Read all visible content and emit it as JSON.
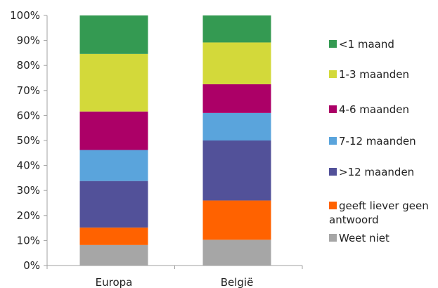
{
  "chart_data": {
    "type": "bar",
    "stacked": true,
    "title": "",
    "xlabel": "",
    "ylabel": "",
    "ylim": [
      0,
      100
    ],
    "y_ticks": [
      "0%",
      "10%",
      "20%",
      "30%",
      "40%",
      "50%",
      "60%",
      "70%",
      "80%",
      "90%",
      "100%"
    ],
    "categories": [
      "Europa",
      "België"
    ],
    "grid": false,
    "legend_position": "right",
    "series": [
      {
        "name": "Weet niet",
        "color": "#a6a6a6",
        "values": [
          8.2,
          10.3
        ]
      },
      {
        "name": "geeft liever geen antwoord",
        "color": "#ff6200",
        "values": [
          7.0,
          15.7
        ]
      },
      {
        "name": ">12 maanden",
        "color": "#525199",
        "values": [
          18.6,
          24.0
        ]
      },
      {
        "name": "7-12 maanden",
        "color": "#5aa4dc",
        "values": [
          12.4,
          11.0
        ]
      },
      {
        "name": "4-6 maanden",
        "color": "#ac0067",
        "values": [
          15.4,
          11.5
        ]
      },
      {
        "name": "1-3 maanden",
        "color": "#d3d93a",
        "values": [
          23.0,
          16.7
        ]
      },
      {
        "name": "<1 maand",
        "color": "#349a52",
        "values": [
          15.4,
          10.8
        ]
      }
    ],
    "legend_order": [
      "<1 maand",
      "1-3 maanden",
      "4-6 maanden",
      "7-12 maanden",
      ">12 maanden",
      "geeft liever geen antwoord",
      "Weet niet"
    ]
  }
}
